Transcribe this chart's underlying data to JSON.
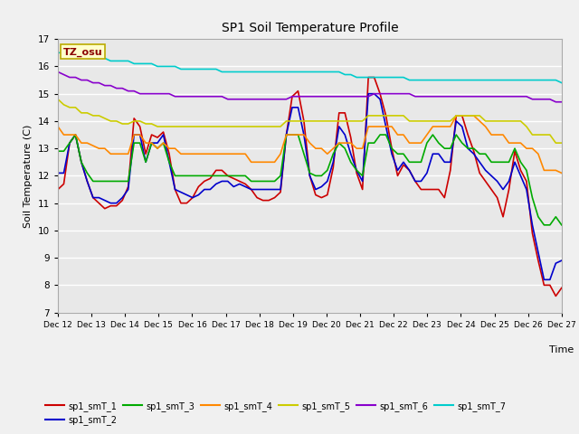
{
  "title": "SP1 Soil Temperature Profile",
  "xlabel": "Time",
  "ylabel": "Soil Temperature (C)",
  "ylim": [
    7.0,
    17.0
  ],
  "yticks": [
    7.0,
    8.0,
    9.0,
    10.0,
    11.0,
    12.0,
    13.0,
    14.0,
    15.0,
    16.0,
    17.0
  ],
  "bg_color": "#e8e8e8",
  "grid_color": "#ffffff",
  "annotation_text": "TZ_osu",
  "annotation_bg": "#ffffcc",
  "annotation_border": "#bbaa00",
  "series_colors": {
    "sp1_smT_1": "#cc0000",
    "sp1_smT_2": "#0000cc",
    "sp1_smT_3": "#00aa00",
    "sp1_smT_4": "#ff8800",
    "sp1_smT_5": "#cccc00",
    "sp1_smT_6": "#8800cc",
    "sp1_smT_7": "#00cccc"
  },
  "x_ticklabels": [
    "Dec 12",
    "Dec 13",
    "Dec 14",
    "Dec 15",
    "Dec 16",
    "Dec 17",
    "Dec 18",
    "Dec 19",
    "Dec 20",
    "Dec 21",
    "Dec 22",
    "Dec 23",
    "Dec 24",
    "Dec 25",
    "Dec 26",
    "Dec 27"
  ],
  "x_tick_positions": [
    0,
    1,
    2,
    3,
    4,
    5,
    6,
    7,
    8,
    9,
    10,
    11,
    12,
    13,
    14,
    15
  ],
  "data": {
    "sp1_smT_1": [
      11.5,
      11.7,
      13.2,
      13.5,
      12.5,
      11.8,
      11.2,
      11.0,
      10.8,
      10.9,
      10.9,
      11.1,
      11.6,
      14.1,
      13.8,
      12.8,
      13.5,
      13.4,
      13.6,
      12.8,
      11.5,
      11.0,
      11.0,
      11.2,
      11.6,
      11.8,
      11.9,
      12.2,
      12.2,
      12.0,
      11.9,
      11.8,
      11.7,
      11.5,
      11.2,
      11.1,
      11.1,
      11.2,
      11.4,
      13.5,
      14.9,
      15.1,
      14.0,
      12.0,
      11.3,
      11.2,
      11.3,
      12.3,
      14.3,
      14.3,
      13.4,
      12.1,
      11.5,
      15.6,
      15.6,
      15.0,
      14.2,
      13.0,
      12.0,
      12.4,
      12.2,
      11.8,
      11.5,
      11.5,
      11.5,
      11.5,
      11.2,
      12.2,
      14.2,
      14.2,
      13.5,
      12.9,
      12.1,
      11.8,
      11.5,
      11.2,
      10.5,
      11.5,
      12.9,
      12.2,
      11.8,
      9.9,
      8.9,
      8.0,
      8.0,
      7.6,
      7.9
    ],
    "sp1_smT_2": [
      12.1,
      12.1,
      13.2,
      13.5,
      12.5,
      11.8,
      11.2,
      11.2,
      11.1,
      11.0,
      11.0,
      11.2,
      11.5,
      13.5,
      13.5,
      12.5,
      13.2,
      13.2,
      13.5,
      12.5,
      11.5,
      11.4,
      11.3,
      11.2,
      11.3,
      11.5,
      11.5,
      11.7,
      11.8,
      11.8,
      11.6,
      11.7,
      11.6,
      11.5,
      11.5,
      11.5,
      11.5,
      11.5,
      11.5,
      13.5,
      14.5,
      14.5,
      13.5,
      12.0,
      11.5,
      11.6,
      11.8,
      12.5,
      13.8,
      13.5,
      12.8,
      12.2,
      11.8,
      15.0,
      15.0,
      14.8,
      13.8,
      12.8,
      12.2,
      12.5,
      12.2,
      11.8,
      11.8,
      12.1,
      12.8,
      12.8,
      12.5,
      12.5,
      14.0,
      13.8,
      13.0,
      12.8,
      12.5,
      12.2,
      12.0,
      11.8,
      11.5,
      11.8,
      12.5,
      12.0,
      11.5,
      10.2,
      9.2,
      8.2,
      8.2,
      8.8,
      8.9
    ],
    "sp1_smT_3": [
      12.9,
      12.9,
      13.2,
      13.5,
      12.5,
      12.1,
      11.8,
      11.8,
      11.8,
      11.8,
      11.8,
      11.8,
      11.8,
      13.2,
      13.2,
      12.5,
      13.2,
      13.0,
      13.2,
      12.5,
      12.0,
      12.0,
      12.0,
      12.0,
      12.0,
      12.0,
      12.0,
      12.0,
      12.0,
      12.0,
      12.0,
      12.0,
      12.0,
      11.8,
      11.8,
      11.8,
      11.8,
      11.8,
      12.0,
      13.5,
      13.5,
      13.5,
      12.8,
      12.1,
      12.0,
      12.0,
      12.2,
      12.8,
      13.2,
      13.0,
      12.5,
      12.2,
      12.0,
      13.2,
      13.2,
      13.5,
      13.5,
      13.0,
      12.8,
      12.8,
      12.5,
      12.5,
      12.5,
      13.2,
      13.5,
      13.2,
      13.0,
      13.0,
      13.5,
      13.2,
      13.0,
      13.0,
      12.8,
      12.8,
      12.5,
      12.5,
      12.5,
      12.5,
      13.0,
      12.5,
      12.2,
      11.2,
      10.5,
      10.2,
      10.2,
      10.5,
      10.2
    ],
    "sp1_smT_4": [
      13.8,
      13.5,
      13.5,
      13.5,
      13.2,
      13.2,
      13.1,
      13.0,
      13.0,
      12.8,
      12.8,
      12.8,
      12.8,
      13.5,
      13.5,
      13.2,
      13.2,
      13.0,
      13.2,
      13.0,
      13.0,
      12.8,
      12.8,
      12.8,
      12.8,
      12.8,
      12.8,
      12.8,
      12.8,
      12.8,
      12.8,
      12.8,
      12.8,
      12.5,
      12.5,
      12.5,
      12.5,
      12.5,
      12.8,
      13.5,
      13.5,
      13.5,
      13.5,
      13.2,
      13.0,
      13.0,
      12.8,
      13.0,
      13.2,
      13.2,
      13.2,
      13.0,
      13.0,
      13.8,
      13.8,
      13.8,
      13.8,
      13.8,
      13.5,
      13.5,
      13.2,
      13.2,
      13.2,
      13.5,
      13.8,
      13.8,
      13.8,
      13.8,
      14.2,
      14.2,
      14.2,
      14.2,
      14.0,
      13.8,
      13.5,
      13.5,
      13.5,
      13.2,
      13.2,
      13.2,
      13.0,
      13.0,
      12.8,
      12.2,
      12.2,
      12.2,
      12.1
    ],
    "sp1_smT_5": [
      14.8,
      14.6,
      14.5,
      14.5,
      14.3,
      14.3,
      14.2,
      14.2,
      14.1,
      14.0,
      14.0,
      13.9,
      13.9,
      14.0,
      14.0,
      13.9,
      13.9,
      13.8,
      13.8,
      13.8,
      13.8,
      13.8,
      13.8,
      13.8,
      13.8,
      13.8,
      13.8,
      13.8,
      13.8,
      13.8,
      13.8,
      13.8,
      13.8,
      13.8,
      13.8,
      13.8,
      13.8,
      13.8,
      13.8,
      14.0,
      14.0,
      14.0,
      14.0,
      14.0,
      14.0,
      14.0,
      14.0,
      14.0,
      14.0,
      14.0,
      14.0,
      14.0,
      14.0,
      14.2,
      14.2,
      14.2,
      14.2,
      14.2,
      14.2,
      14.2,
      14.0,
      14.0,
      14.0,
      14.0,
      14.0,
      14.0,
      14.0,
      14.0,
      14.2,
      14.2,
      14.2,
      14.2,
      14.2,
      14.0,
      14.0,
      14.0,
      14.0,
      14.0,
      14.0,
      14.0,
      13.8,
      13.5,
      13.5,
      13.5,
      13.5,
      13.2,
      13.2
    ],
    "sp1_smT_6": [
      15.8,
      15.7,
      15.6,
      15.6,
      15.5,
      15.5,
      15.4,
      15.4,
      15.3,
      15.3,
      15.2,
      15.2,
      15.1,
      15.1,
      15.0,
      15.0,
      15.0,
      15.0,
      15.0,
      15.0,
      14.9,
      14.9,
      14.9,
      14.9,
      14.9,
      14.9,
      14.9,
      14.9,
      14.9,
      14.8,
      14.8,
      14.8,
      14.8,
      14.8,
      14.8,
      14.8,
      14.8,
      14.8,
      14.8,
      14.8,
      14.9,
      14.9,
      14.9,
      14.9,
      14.9,
      14.9,
      14.9,
      14.9,
      14.9,
      14.9,
      14.9,
      14.9,
      14.9,
      14.9,
      15.0,
      15.0,
      15.0,
      15.0,
      15.0,
      15.0,
      15.0,
      14.9,
      14.9,
      14.9,
      14.9,
      14.9,
      14.9,
      14.9,
      14.9,
      14.9,
      14.9,
      14.9,
      14.9,
      14.9,
      14.9,
      14.9,
      14.9,
      14.9,
      14.9,
      14.9,
      14.9,
      14.8,
      14.8,
      14.8,
      14.8,
      14.7,
      14.7
    ],
    "sp1_smT_7": [
      16.5,
      16.5,
      16.4,
      16.4,
      16.4,
      16.3,
      16.3,
      16.3,
      16.3,
      16.2,
      16.2,
      16.2,
      16.2,
      16.1,
      16.1,
      16.1,
      16.1,
      16.0,
      16.0,
      16.0,
      16.0,
      15.9,
      15.9,
      15.9,
      15.9,
      15.9,
      15.9,
      15.9,
      15.8,
      15.8,
      15.8,
      15.8,
      15.8,
      15.8,
      15.8,
      15.8,
      15.8,
      15.8,
      15.8,
      15.8,
      15.8,
      15.8,
      15.8,
      15.8,
      15.8,
      15.8,
      15.8,
      15.8,
      15.8,
      15.7,
      15.7,
      15.6,
      15.6,
      15.6,
      15.6,
      15.6,
      15.6,
      15.6,
      15.6,
      15.6,
      15.5,
      15.5,
      15.5,
      15.5,
      15.5,
      15.5,
      15.5,
      15.5,
      15.5,
      15.5,
      15.5,
      15.5,
      15.5,
      15.5,
      15.5,
      15.5,
      15.5,
      15.5,
      15.5,
      15.5,
      15.5,
      15.5,
      15.5,
      15.5,
      15.5,
      15.5,
      15.4
    ]
  }
}
